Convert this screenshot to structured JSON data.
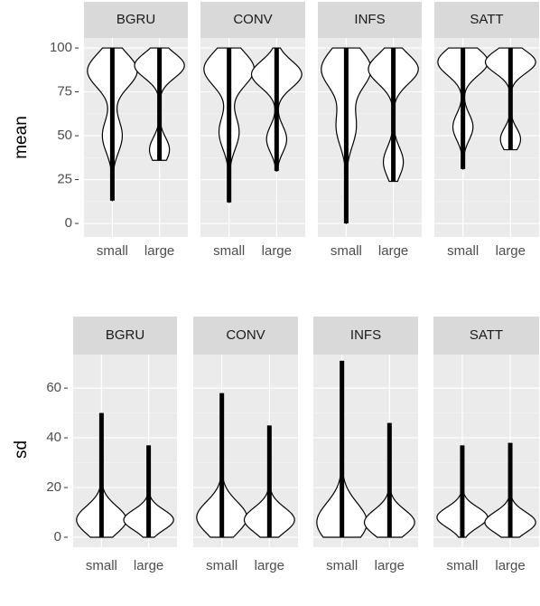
{
  "chart_data": [
    {
      "type": "violin",
      "ylabel": "mean",
      "categories": [
        "small",
        "large"
      ],
      "ylim": [
        -7.7,
        105.7
      ],
      "yticks": [
        0,
        25,
        50,
        75,
        100
      ],
      "grid": true,
      "fill": "#ffffff",
      "color": "#000000",
      "facets": [
        {
          "label": "BGRU",
          "groups": [
            {
              "min": 13,
              "max": 100,
              "modes": [
                87,
                50
              ]
            },
            {
              "min": 36,
              "max": 100,
              "modes": [
                90,
                42
              ]
            }
          ]
        },
        {
          "label": "CONV",
          "groups": [
            {
              "min": 12,
              "max": 100,
              "modes": [
                88,
                52
              ]
            },
            {
              "min": 30,
              "max": 100,
              "modes": [
                85,
                48
              ]
            }
          ]
        },
        {
          "label": "INFS",
          "groups": [
            {
              "min": 0,
              "max": 100,
              "modes": [
                88,
                55
              ]
            },
            {
              "min": 24,
              "max": 100,
              "modes": [
                88,
                35
              ]
            }
          ]
        },
        {
          "label": "SATT",
          "groups": [
            {
              "min": 31,
              "max": 100,
              "modes": [
                92,
                55
              ]
            },
            {
              "min": 42,
              "max": 100,
              "modes": [
                92,
                48
              ]
            }
          ]
        }
      ]
    },
    {
      "type": "violin",
      "ylabel": "sd",
      "categories": [
        "small",
        "large"
      ],
      "ylim": [
        -4,
        73.5
      ],
      "yticks": [
        0,
        20,
        40,
        60
      ],
      "grid": true,
      "fill": "#ffffff",
      "color": "#000000",
      "facets": [
        {
          "label": "BGRU",
          "groups": [
            {
              "min": 0,
              "max": 50,
              "modes": [
                7
              ]
            },
            {
              "min": 0,
              "max": 37,
              "modes": [
                7
              ]
            }
          ]
        },
        {
          "label": "CONV",
          "groups": [
            {
              "min": 0,
              "max": 58,
              "modes": [
                8
              ]
            },
            {
              "min": 0,
              "max": 45,
              "modes": [
                7
              ]
            }
          ]
        },
        {
          "label": "INFS",
          "groups": [
            {
              "min": 0,
              "max": 71,
              "modes": [
                6
              ]
            },
            {
              "min": 0,
              "max": 46,
              "modes": [
                6
              ]
            }
          ]
        },
        {
          "label": "SATT",
          "groups": [
            {
              "min": 0,
              "max": 37,
              "modes": [
                8
              ]
            },
            {
              "min": 0,
              "max": 38,
              "modes": [
                6
              ]
            }
          ]
        }
      ]
    }
  ]
}
